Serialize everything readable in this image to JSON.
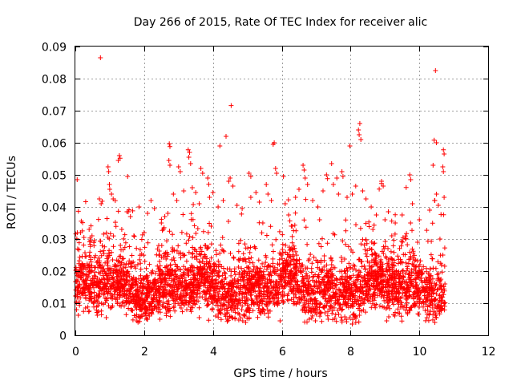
{
  "chart_data": {
    "type": "scatter",
    "title": "Day 266 of 2015, Rate Of TEC Index for receiver alic",
    "xlabel": "GPS time / hours",
    "ylabel": "ROTI / TECUs",
    "xlim": [
      0,
      12
    ],
    "ylim": [
      0,
      0.09
    ],
    "grid": true,
    "marker": "+",
    "color": "#ff0000",
    "x_ticks": [
      0,
      2,
      4,
      6,
      8,
      10,
      12
    ],
    "x_tick_labels": [
      "0",
      "2",
      "4",
      "6",
      "8",
      "10",
      "12"
    ],
    "y_ticks": [
      0,
      0.01,
      0.02,
      0.03,
      0.04,
      0.05,
      0.06,
      0.07,
      0.08,
      0.09
    ],
    "y_tick_labels": [
      "0",
      "0.01",
      "0.02",
      "0.03",
      "0.04",
      "0.05",
      "0.06",
      "0.07",
      "0.08",
      "0.09"
    ],
    "data_extent_hours": [
      0,
      10.75
    ],
    "series": [
      {
        "name": "ROTI",
        "points": [
          [
            0.73,
            0.0865
          ],
          [
            10.47,
            0.0825
          ],
          [
            4.53,
            0.0716
          ],
          [
            4.38,
            0.062
          ],
          [
            8.27,
            0.066
          ],
          [
            8.23,
            0.064
          ],
          [
            8.25,
            0.0625
          ],
          [
            8.3,
            0.061
          ],
          [
            10.43,
            0.0608
          ],
          [
            10.5,
            0.06
          ],
          [
            5.78,
            0.06
          ],
          [
            5.75,
            0.0595
          ],
          [
            2.73,
            0.0597
          ],
          [
            2.75,
            0.0588
          ],
          [
            3.28,
            0.0578
          ],
          [
            3.32,
            0.057
          ],
          [
            4.2,
            0.059
          ],
          [
            7.98,
            0.059
          ],
          [
            10.7,
            0.0578
          ],
          [
            10.72,
            0.0565
          ],
          [
            1.28,
            0.056
          ],
          [
            1.3,
            0.0552
          ],
          [
            1.25,
            0.0545
          ],
          [
            0.95,
            0.0525
          ],
          [
            0.97,
            0.051
          ],
          [
            1.52,
            0.0495
          ],
          [
            2.72,
            0.0545
          ],
          [
            2.75,
            0.053
          ],
          [
            3.3,
            0.0555
          ],
          [
            3.35,
            0.0535
          ],
          [
            3.0,
            0.0525
          ],
          [
            3.05,
            0.051
          ],
          [
            3.65,
            0.052
          ],
          [
            3.7,
            0.0505
          ],
          [
            3.85,
            0.049
          ],
          [
            4.58,
            0.0465
          ],
          [
            4.5,
            0.049
          ],
          [
            4.46,
            0.048
          ],
          [
            5.05,
            0.0505
          ],
          [
            5.1,
            0.0495
          ],
          [
            5.55,
            0.047
          ],
          [
            5.82,
            0.052
          ],
          [
            5.85,
            0.0505
          ],
          [
            6.05,
            0.0495
          ],
          [
            6.62,
            0.053
          ],
          [
            6.65,
            0.0515
          ],
          [
            6.68,
            0.049
          ],
          [
            7.3,
            0.05
          ],
          [
            7.33,
            0.0488
          ],
          [
            7.6,
            0.049
          ],
          [
            7.75,
            0.051
          ],
          [
            7.78,
            0.0495
          ],
          [
            7.45,
            0.0535
          ],
          [
            8.9,
            0.048
          ],
          [
            8.95,
            0.0465
          ],
          [
            9.72,
            0.05
          ],
          [
            9.75,
            0.0485
          ],
          [
            10.68,
            0.0525
          ],
          [
            10.7,
            0.051
          ],
          [
            10.4,
            0.053
          ],
          [
            0.7,
            0.0425
          ],
          [
            0.75,
            0.041
          ],
          [
            0.99,
            0.047
          ],
          [
            1.0,
            0.0455
          ],
          [
            1.05,
            0.044
          ],
          [
            1.1,
            0.0425
          ],
          [
            1.5,
            0.0385
          ],
          [
            1.6,
            0.037
          ],
          [
            1.85,
            0.04
          ],
          [
            2.1,
            0.038
          ],
          [
            2.2,
            0.042
          ],
          [
            2.3,
            0.0395
          ],
          [
            2.5,
            0.035
          ],
          [
            2.6,
            0.037
          ],
          [
            2.85,
            0.044
          ],
          [
            2.95,
            0.042
          ],
          [
            3.15,
            0.045
          ],
          [
            3.4,
            0.046
          ],
          [
            3.5,
            0.0445
          ],
          [
            3.6,
            0.041
          ],
          [
            3.9,
            0.043
          ],
          [
            4.0,
            0.0445
          ],
          [
            4.15,
            0.04
          ],
          [
            4.3,
            0.042
          ],
          [
            4.7,
            0.0405
          ],
          [
            4.85,
            0.0395
          ],
          [
            5.1,
            0.043
          ],
          [
            5.25,
            0.0445
          ],
          [
            5.35,
            0.0415
          ],
          [
            5.6,
            0.044
          ],
          [
            5.7,
            0.042
          ],
          [
            6.1,
            0.041
          ],
          [
            6.2,
            0.0375
          ],
          [
            6.4,
            0.043
          ],
          [
            6.5,
            0.0455
          ],
          [
            6.75,
            0.047
          ],
          [
            6.9,
            0.042
          ],
          [
            7.05,
            0.04
          ],
          [
            7.2,
            0.045
          ],
          [
            7.5,
            0.047
          ],
          [
            7.65,
            0.044
          ],
          [
            7.9,
            0.043
          ],
          [
            8.05,
            0.044
          ],
          [
            8.15,
            0.0465
          ],
          [
            8.35,
            0.045
          ],
          [
            8.45,
            0.0425
          ],
          [
            8.6,
            0.04
          ],
          [
            8.75,
            0.0375
          ],
          [
            9.0,
            0.036
          ],
          [
            9.1,
            0.0385
          ],
          [
            9.3,
            0.035
          ],
          [
            9.5,
            0.0375
          ],
          [
            9.8,
            0.041
          ],
          [
            10.0,
            0.036
          ],
          [
            10.3,
            0.039
          ],
          [
            10.45,
            0.042
          ],
          [
            10.5,
            0.044
          ],
          [
            10.55,
            0.0405
          ],
          [
            10.72,
            0.043
          ],
          [
            0.15,
            0.032
          ],
          [
            0.25,
            0.0305
          ],
          [
            0.4,
            0.033
          ],
          [
            0.55,
            0.0295
          ],
          [
            1.35,
            0.033
          ],
          [
            1.7,
            0.031
          ],
          [
            2.0,
            0.032
          ],
          [
            3.95,
            0.034
          ],
          [
            4.45,
            0.0355
          ],
          [
            5.45,
            0.035
          ],
          [
            6.3,
            0.034
          ],
          [
            7.1,
            0.036
          ],
          [
            8.65,
            0.033
          ],
          [
            9.2,
            0.031
          ],
          [
            9.6,
            0.03
          ],
          [
            9.95,
            0.029
          ],
          [
            10.6,
            0.03
          ],
          [
            4.95,
            0.004
          ],
          [
            5.95,
            0.0045
          ],
          [
            8.05,
            0.0035
          ],
          [
            8.15,
            0.004
          ],
          [
            0.9,
            0.0055
          ],
          [
            2.1,
            0.005
          ],
          [
            3.6,
            0.0055
          ],
          [
            6.8,
            0.005
          ],
          [
            7.35,
            0.005
          ],
          [
            9.05,
            0.0045
          ],
          [
            10.45,
            0.004
          ],
          [
            10.5,
            0.0055
          ]
        ]
      }
    ]
  }
}
